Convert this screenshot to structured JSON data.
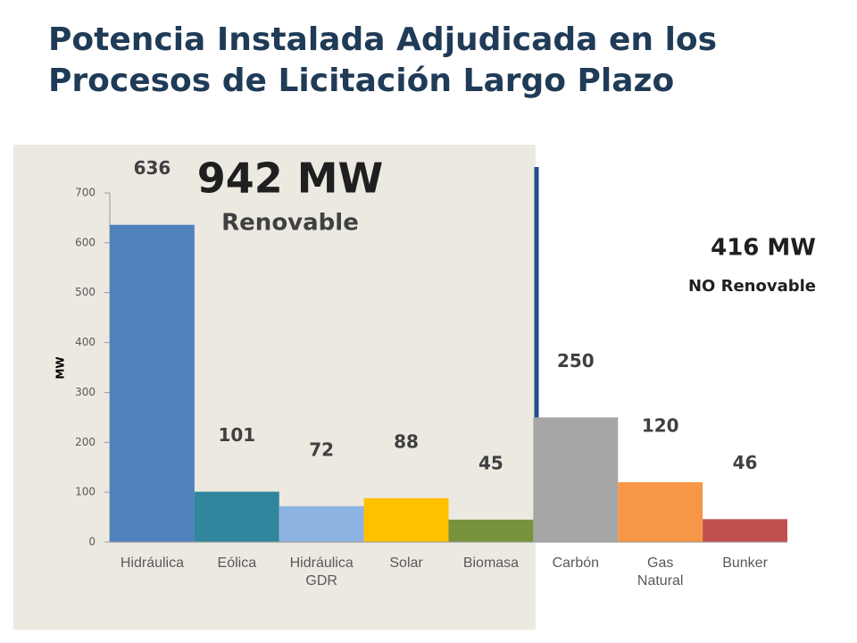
{
  "title": "Potencia Instalada Adjudicada en los Procesos de Licitación Largo Plazo",
  "chart_data": {
    "type": "bar",
    "y_label": "MW",
    "categories": [
      "Hidráulica",
      "Eólica",
      "Hidráulica GDR",
      "Solar",
      "Biomasa",
      "Carbón",
      "Gas Natural",
      "Bunker"
    ],
    "values": [
      636,
      101,
      72,
      88,
      45,
      250,
      120,
      46
    ],
    "colors": [
      "#4f81bd",
      "#31859c",
      "#8db3e2",
      "#ffc000",
      "#77933c",
      "#a6a6a6",
      "#f79646",
      "#c0504d"
    ],
    "ylim": [
      0,
      700
    ],
    "yticks": [
      0,
      100,
      200,
      300,
      400,
      500,
      600,
      700
    ],
    "grid": false,
    "annotations": {
      "renewable_total": "942 MW",
      "renewable_label": "Renovable",
      "nonrenewable_total": "416 MW",
      "nonrenewable_label": "NO Renovable"
    }
  }
}
